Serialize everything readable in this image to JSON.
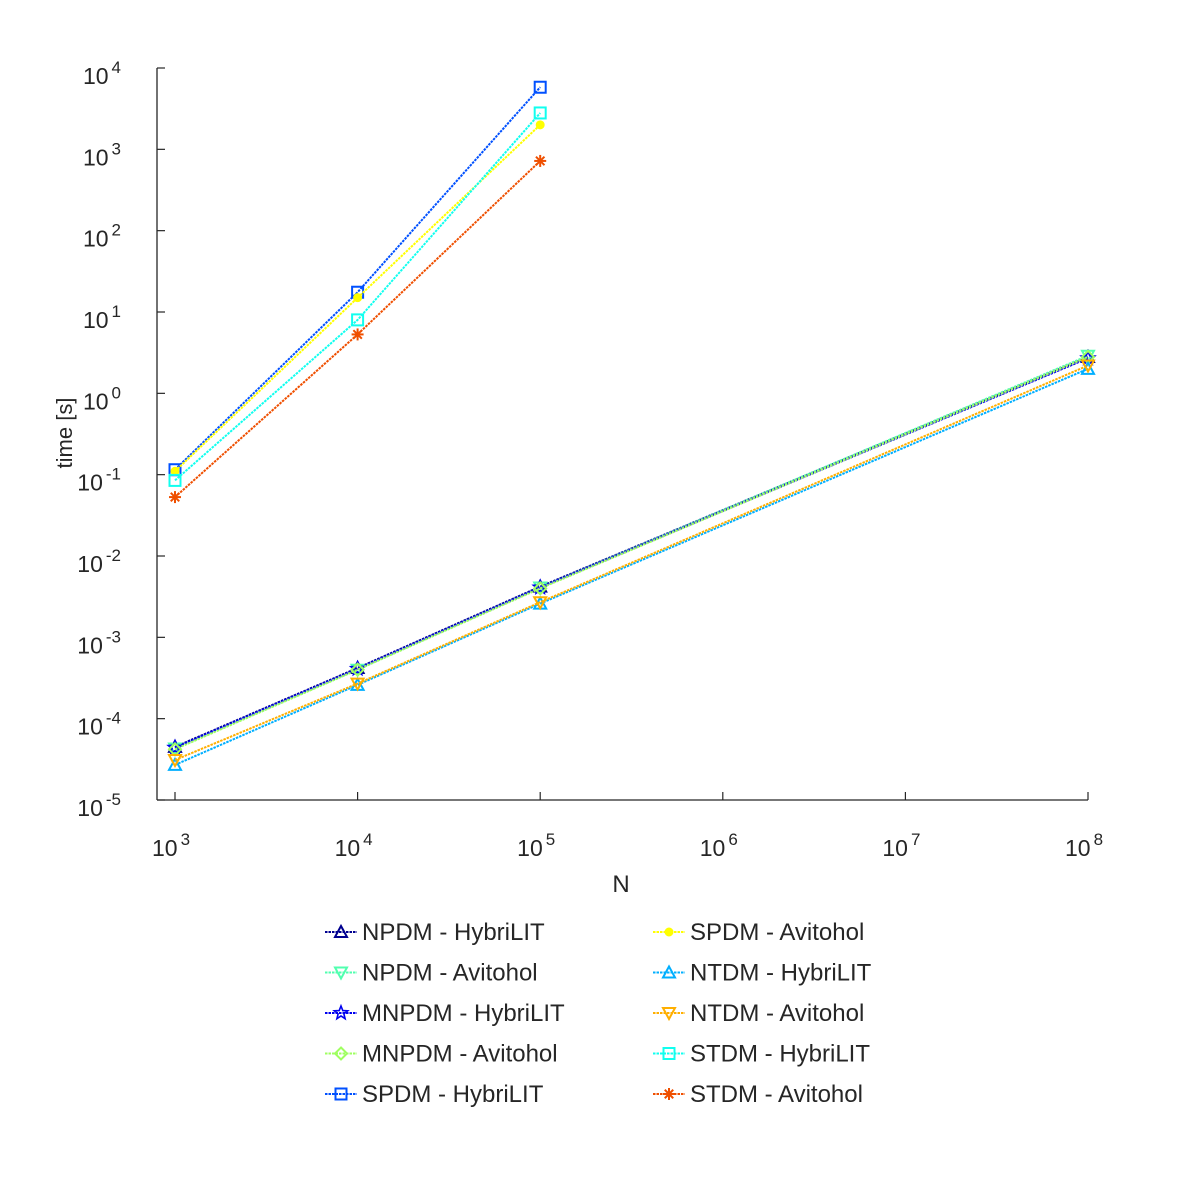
{
  "chart_data": {
    "type": "line",
    "title": "",
    "xlabel": "N",
    "ylabel": "time [s]",
    "xscale": "log",
    "yscale": "log",
    "xlim": [
      1000,
      100000000
    ],
    "ylim": [
      1e-05,
      10000
    ],
    "xticks": [
      {
        "value": 1000,
        "base": "10",
        "exp": "3"
      },
      {
        "value": 10000,
        "base": "10",
        "exp": "4"
      },
      {
        "value": 100000,
        "base": "10",
        "exp": "5"
      },
      {
        "value": 1000000,
        "base": "10",
        "exp": "6"
      },
      {
        "value": 10000000,
        "base": "10",
        "exp": "7"
      },
      {
        "value": 100000000,
        "base": "10",
        "exp": "8"
      }
    ],
    "yticks": [
      {
        "value": 1e-05,
        "base": "10",
        "exp": "-5"
      },
      {
        "value": 0.0001,
        "base": "10",
        "exp": "-4"
      },
      {
        "value": 0.001,
        "base": "10",
        "exp": "-3"
      },
      {
        "value": 0.01,
        "base": "10",
        "exp": "-2"
      },
      {
        "value": 0.1,
        "base": "10",
        "exp": "-1"
      },
      {
        "value": 1,
        "base": "10",
        "exp": "0"
      },
      {
        "value": 10,
        "base": "10",
        "exp": "1"
      },
      {
        "value": 100,
        "base": "10",
        "exp": "2"
      },
      {
        "value": 1000,
        "base": "10",
        "exp": "3"
      },
      {
        "value": 10000,
        "base": "10",
        "exp": "4"
      }
    ],
    "legend_position": "below",
    "series": [
      {
        "name": "NPDM - HybriLIT",
        "color": "#00008f",
        "marker": "triangle-up",
        "x": [
          1000,
          10000,
          100000,
          100000000
        ],
        "y": [
          4.5e-05,
          0.00042,
          0.0042,
          2.8
        ]
      },
      {
        "name": "NPDM - Avitohol",
        "color": "#50ffaf",
        "marker": "triangle-down",
        "x": [
          1000,
          10000,
          100000,
          100000000
        ],
        "y": [
          4.3e-05,
          0.0004,
          0.0041,
          2.9
        ]
      },
      {
        "name": "MNPDM - HybriLIT",
        "color": "#0000ef",
        "marker": "star",
        "x": [
          1000,
          10000,
          100000,
          100000000
        ],
        "y": [
          4.4e-05,
          0.00041,
          0.0041,
          2.7
        ]
      },
      {
        "name": "MNPDM - Avitohol",
        "color": "#9fff60",
        "marker": "diamond",
        "x": [
          1000,
          10000,
          100000,
          100000000
        ],
        "y": [
          4.2e-05,
          0.0004,
          0.004,
          2.8
        ]
      },
      {
        "name": "SPDM - HybriLIT",
        "color": "#0050ff",
        "marker": "square",
        "x": [
          1000,
          10000,
          100000
        ],
        "y": [
          0.115,
          17.5,
          5800
        ]
      },
      {
        "name": "SPDM - Avitohol",
        "color": "#ffff00",
        "marker": "dot",
        "x": [
          1000,
          10000,
          100000
        ],
        "y": [
          0.11,
          15,
          2000
        ]
      },
      {
        "name": "NTDM - HybriLIT",
        "color": "#00afff",
        "marker": "triangle-up",
        "x": [
          1000,
          10000,
          100000,
          100000000
        ],
        "y": [
          2.7e-05,
          0.00026,
          0.0026,
          2.0
        ]
      },
      {
        "name": "NTDM - Avitohol",
        "color": "#ffaf00",
        "marker": "triangle-down",
        "x": [
          1000,
          10000,
          100000,
          100000000
        ],
        "y": [
          3.1e-05,
          0.00027,
          0.0027,
          2.2
        ]
      },
      {
        "name": "STDM - HybriLIT",
        "color": "#10ffef",
        "marker": "square",
        "x": [
          1000,
          10000,
          100000
        ],
        "y": [
          0.085,
          8,
          2800
        ]
      },
      {
        "name": "STDM - Avitohol",
        "color": "#ef4f00",
        "marker": "asterisk",
        "x": [
          1000,
          10000,
          100000
        ],
        "y": [
          0.053,
          5.3,
          720
        ]
      }
    ]
  }
}
